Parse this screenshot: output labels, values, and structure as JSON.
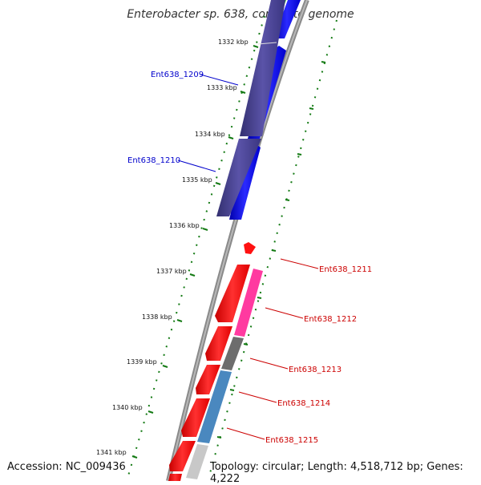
{
  "title": "Enterobacter sp. 638, complete genome",
  "footer": {
    "accession": "Accession: NC_009436",
    "topology": "Topology: circular; Length: 4,518,712 bp; Genes: 4,222"
  },
  "kbp_ticks": [
    "1332 kbp",
    "1333 kbp",
    "1334 kbp",
    "1335 kbp",
    "1336 kbp",
    "1337 kbp",
    "1338 kbp",
    "1339 kbp",
    "1340 kbp",
    "1341 kbp"
  ],
  "gene_labels": [
    "Ent638_1209",
    "Ent638_1210",
    "Ent638_1211",
    "Ent638_1212",
    "Ent638_1213",
    "Ent638_1214",
    "Ent638_1215"
  ],
  "colors": {
    "backbone": "#8a8a8a",
    "forward_gene": "#0000ff",
    "forward_cog": "#4b4595",
    "reverse_gene": "#ff1a1a",
    "magenta_cog": "#ff3aa0",
    "gray_cog": "#6d6d6d",
    "steel_cog": "#4a88bf",
    "light_gray_cog": "#c8c8c8",
    "label_blue": "#0000cc",
    "label_red": "#cc0000",
    "tick_green": "#137a13"
  }
}
